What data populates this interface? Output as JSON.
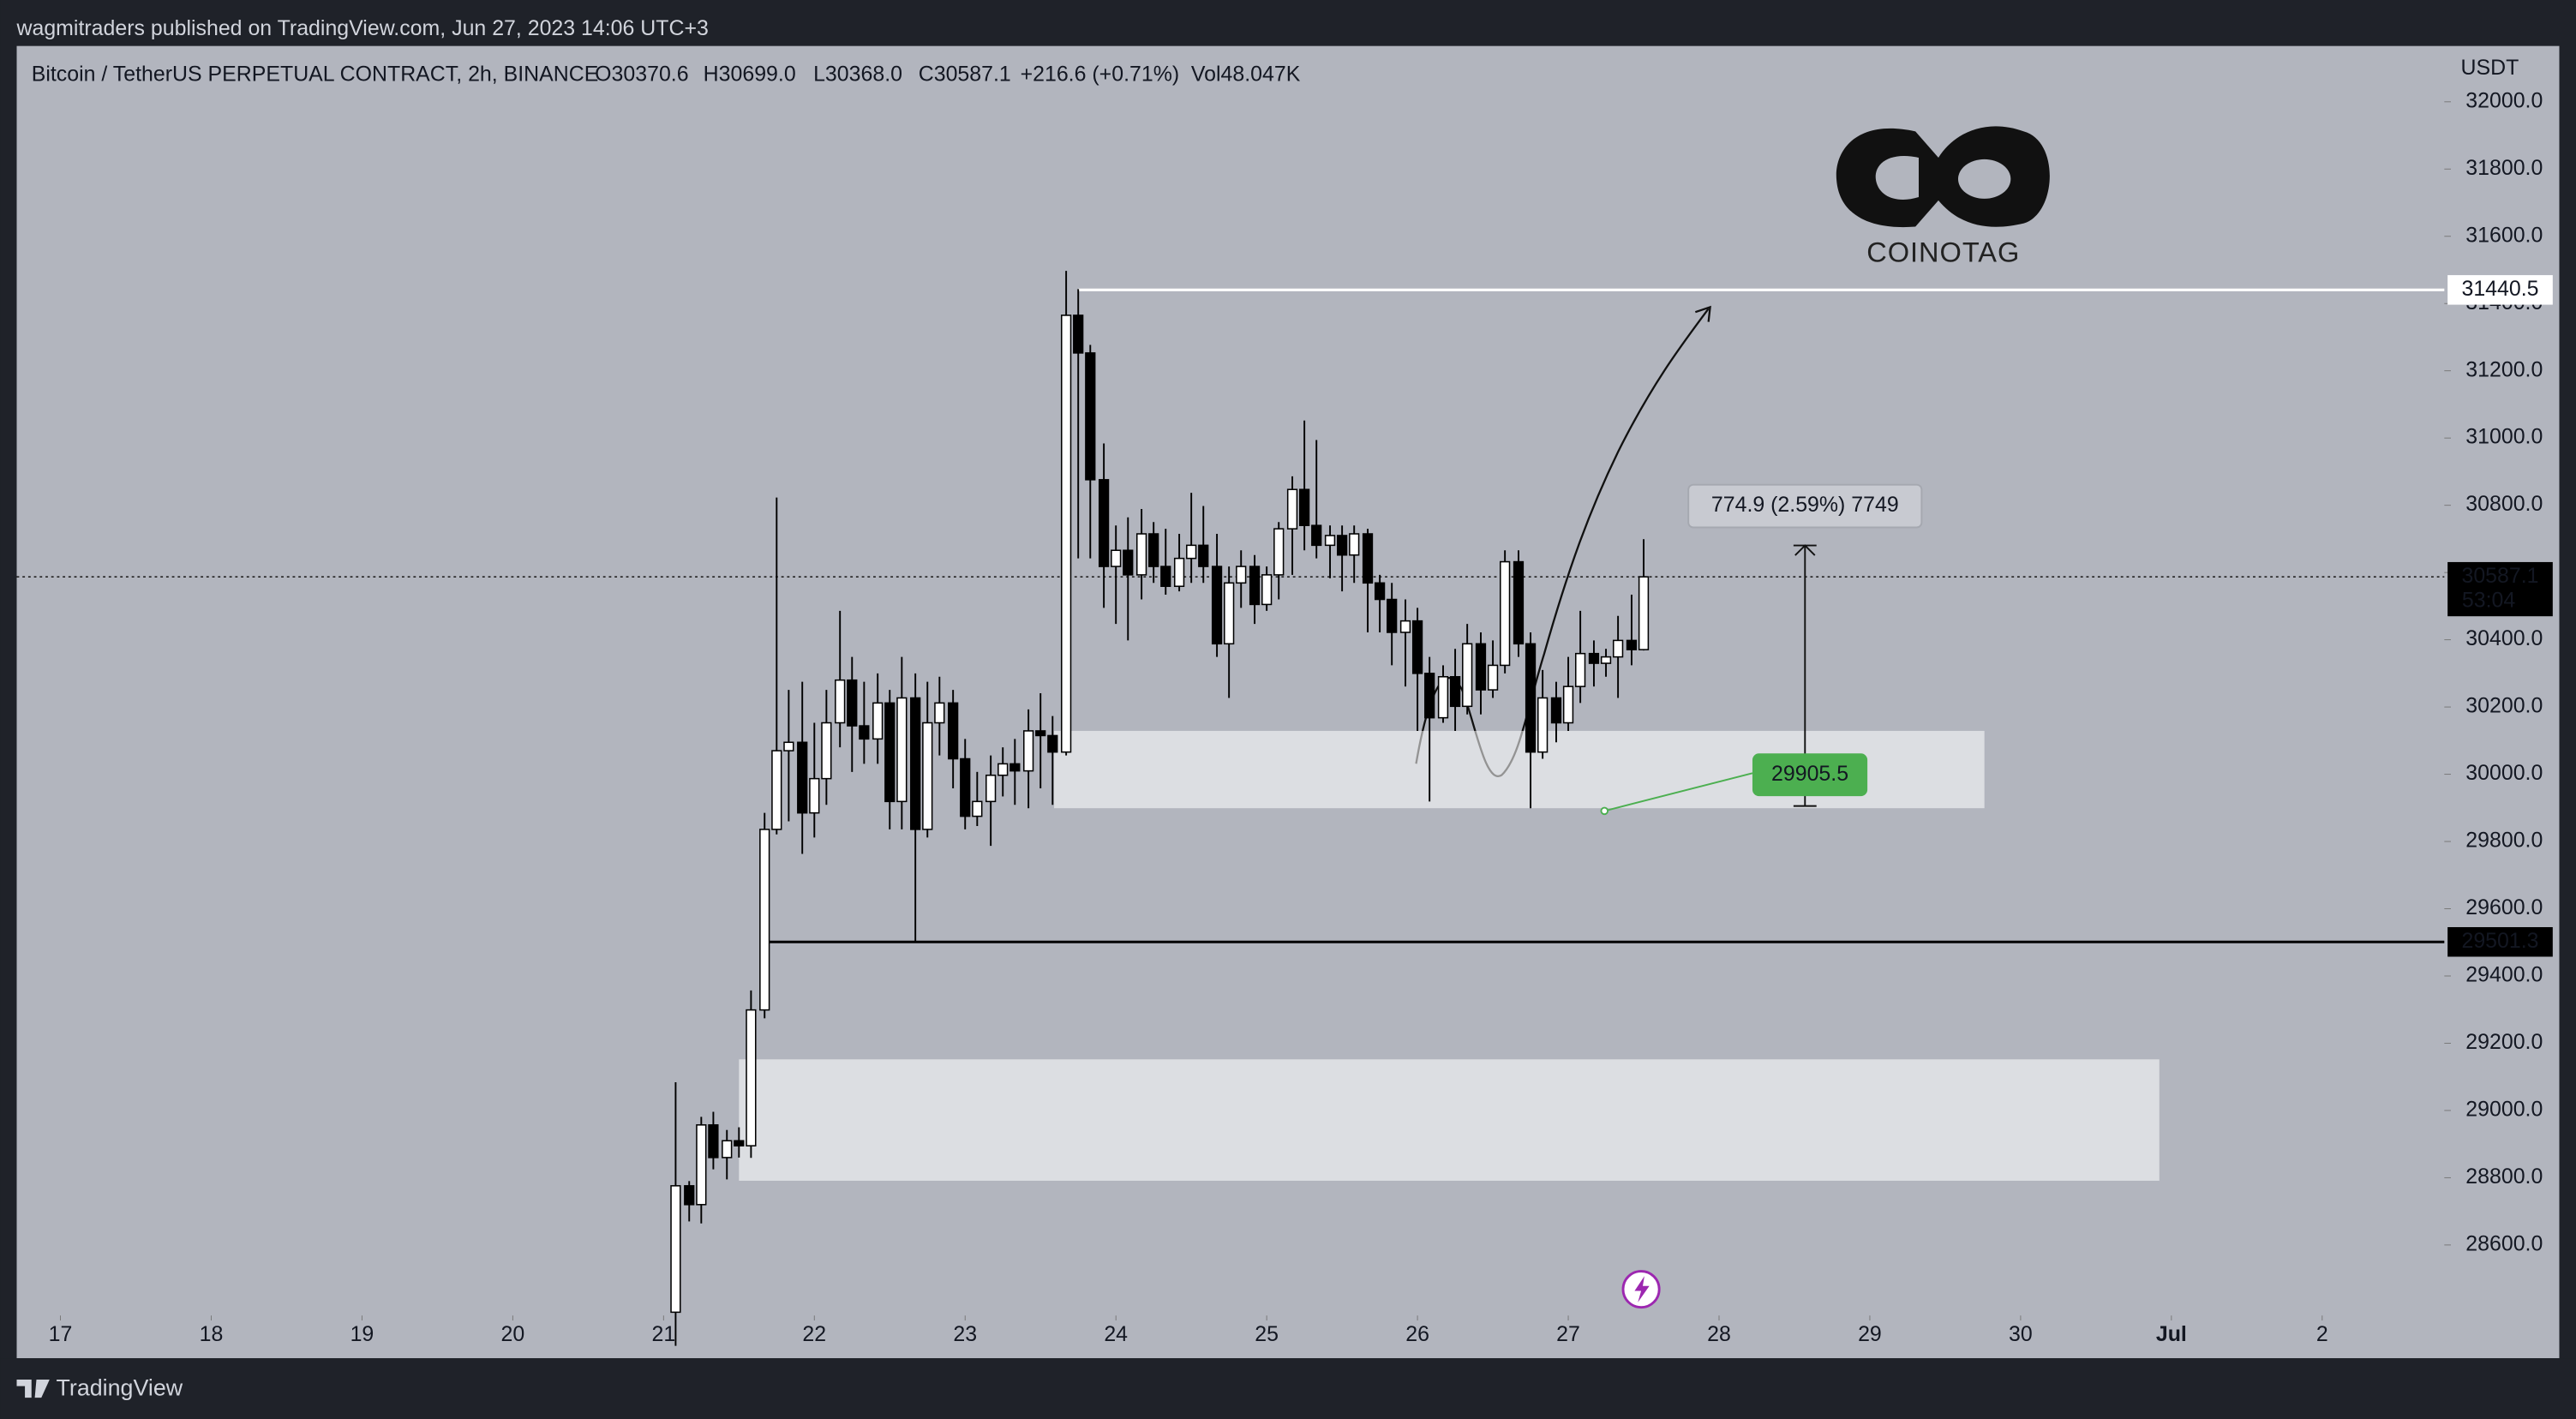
{
  "header": {
    "published": "wagmitraders published on TradingView.com, Jun 27, 2023 14:06 UTC+3"
  },
  "chart_data": {
    "type": "candlestick",
    "title": "Bitcoin / TetherUS PERPETUAL CONTRACT, 2h, BINANCE",
    "legend_values": [
      "O30370.6",
      "H30699.0",
      "L30368.0",
      "C30587.1",
      "+216.6 (+0.71%)",
      "Vol48.047K"
    ],
    "y_axis_label": "USDT",
    "x": [
      21.08,
      21.17,
      21.25,
      21.33,
      21.42,
      21.5,
      21.58,
      21.67,
      21.75,
      21.83,
      21.92,
      22,
      22.08,
      22.17,
      22.25,
      22.33,
      22.42,
      22.5,
      22.58,
      22.67,
      22.75,
      22.83,
      22.92,
      23,
      23.08,
      23.17,
      23.25,
      23.33,
      23.42,
      23.5,
      23.58,
      23.67,
      23.75,
      23.83,
      23.92,
      24,
      24.08,
      24.17,
      24.25,
      24.33,
      24.42,
      24.5,
      24.58,
      24.67,
      24.75,
      24.83,
      24.92,
      25,
      25.08,
      25.17,
      25.25,
      25.33,
      25.42,
      25.5,
      25.58,
      25.67,
      25.75,
      25.83,
      25.92,
      26,
      26.08,
      26.17,
      26.25,
      26.33,
      26.42,
      26.5,
      26.58,
      26.67,
      26.75,
      26.83,
      26.92,
      27,
      27.08,
      27.17,
      27.25,
      27.33,
      27.42,
      27.5
    ],
    "open": [
      28400,
      28776,
      28720,
      28957,
      28860,
      28910,
      28895,
      29299,
      29836,
      30070,
      30095,
      29885,
      29987,
      30153,
      30280,
      30144,
      30105,
      30212,
      29919,
      30227,
      29836,
      30153,
      30212,
      30046,
      29875,
      29919,
      29997,
      30031,
      30010,
      30129,
      30115,
      30066,
      31365,
      31253,
      30876,
      30618,
      30666,
      30593,
      30715,
      30618,
      30559,
      30642,
      30681,
      30618,
      30388,
      30569,
      30618,
      30505,
      30593,
      30730,
      30847,
      30740,
      30681,
      30710,
      30652,
      30715,
      30569,
      30520,
      30422,
      30456,
      30300,
      30168,
      30290,
      30202,
      30388,
      30251,
      30324,
      30632,
      30388,
      30066,
      30227,
      30153,
      30261,
      30359,
      30330,
      30349,
      30398,
      30370.6
    ],
    "high": [
      29084,
      28790,
      28981,
      28996,
      28942,
      28950,
      29357,
      29885,
      30823,
      30251,
      30275,
      30153,
      30251,
      30486,
      30349,
      30275,
      30300,
      30251,
      30349,
      30300,
      30275,
      30290,
      30251,
      30105,
      30007,
      30056,
      30080,
      30105,
      30193,
      30241,
      30173,
      31497,
      31443,
      31277,
      30984,
      30740,
      30764,
      30789,
      30750,
      30730,
      30715,
      30837,
      30798,
      30715,
      30618,
      30666,
      30652,
      30618,
      30750,
      30886,
      31052,
      30994,
      30740,
      30740,
      30740,
      30730,
      30593,
      30569,
      30520,
      30495,
      30349,
      30324,
      30373,
      30447,
      30422,
      30398,
      30666,
      30666,
      30422,
      30310,
      30275,
      30349,
      30486,
      30398,
      30373,
      30471,
      30534,
      30699.0
    ],
    "low": [
      28300,
      28670,
      28664,
      28825,
      28795,
      28860,
      28859,
      29274,
      29821,
      29860,
      29763,
      29812,
      29909,
      30080,
      30007,
      30031,
      30031,
      29836,
      29836,
      29501,
      29812,
      30056,
      29958,
      29836,
      29846,
      29787,
      29934,
      29909,
      29899,
      29958,
      29909,
      30056,
      30642,
      30642,
      30495,
      30447,
      30398,
      30520,
      30569,
      30534,
      30544,
      30569,
      30569,
      30349,
      30227,
      30495,
      30447,
      30486,
      30520,
      30593,
      30666,
      30642,
      30583,
      30544,
      30569,
      30422,
      30422,
      30324,
      30261,
      30129,
      29919,
      30153,
      30129,
      30178,
      30178,
      30227,
      30300,
      30349,
      29899,
      30046,
      30095,
      30129,
      30212,
      30261,
      30290,
      30227,
      30324,
      30368.0
    ],
    "close": [
      28776,
      28720,
      28957,
      28860,
      28910,
      28895,
      29299,
      29836,
      30070,
      30095,
      29885,
      29987,
      30153,
      30280,
      30144,
      30105,
      30212,
      29919,
      30227,
      29836,
      30153,
      30212,
      30046,
      29875,
      29919,
      29997,
      30031,
      30010,
      30129,
      30115,
      30066,
      31365,
      31253,
      30876,
      30618,
      30666,
      30593,
      30715,
      30618,
      30559,
      30642,
      30681,
      30618,
      30388,
      30569,
      30618,
      30505,
      30593,
      30730,
      30847,
      30740,
      30681,
      30710,
      30652,
      30715,
      30569,
      30520,
      30422,
      30456,
      30300,
      30168,
      30290,
      30202,
      30388,
      30251,
      30324,
      30632,
      30388,
      30066,
      30227,
      30153,
      30261,
      30359,
      30330,
      30349,
      30398,
      30370.6,
      30587.1
    ],
    "up_color": "#ffffff",
    "down_color": "#000000",
    "xlim": [
      16.71,
      32.81
    ],
    "xticks": [
      17,
      18,
      19,
      20,
      21,
      22,
      23,
      24,
      25,
      26,
      27,
      28,
      29,
      30,
      {
        "value": 31,
        "label": "Jul"
      },
      {
        "value": 32,
        "label": "2"
      }
    ],
    "ylim": [
      28395,
      32166
    ],
    "yticks": [
      {
        "value": 28600,
        "label": "28600.0"
      },
      {
        "value": 28800,
        "label": "28800.0"
      },
      {
        "value": 29000,
        "label": "29000.0"
      },
      {
        "value": 29200,
        "label": "29200.0"
      },
      {
        "value": 29400,
        "label": "29400.0"
      },
      {
        "value": 29600,
        "label": "29600.0"
      },
      {
        "value": 29800,
        "label": "29800.0"
      },
      {
        "value": 30000,
        "label": "30000.0"
      },
      {
        "value": 30200,
        "label": "30200.0"
      },
      {
        "value": 30400,
        "label": "30400.0"
      },
      {
        "value": 30600,
        "label": "30600.0"
      },
      {
        "value": 30800,
        "label": "30800.0"
      },
      {
        "value": 31000,
        "label": "31000.0"
      },
      {
        "value": 31200,
        "label": "31200.0"
      },
      {
        "value": 31400,
        "label": "31400.0"
      },
      {
        "value": 31600,
        "label": "31600.0"
      },
      {
        "value": 31800,
        "label": "31800.0"
      },
      {
        "value": 32000,
        "label": "32000.0"
      }
    ],
    "grid": false,
    "zones": [
      {
        "x": [
          23.59,
          29.76
        ],
        "y": [
          29899,
          30129
        ]
      },
      {
        "x": [
          21.5,
          30.92
        ],
        "y": [
          28791,
          29152
        ]
      }
    ],
    "levels": [
      {
        "value": 31440.5,
        "x_start": 23.75,
        "color": "#ffffff"
      },
      {
        "value": 29501.3,
        "x_start": 21.7,
        "color": "#000000"
      }
    ],
    "last_price": {
      "value": 30587.1,
      "countdown": "53:04"
    },
    "measure": {
      "x": 28.57,
      "from": 29905.5,
      "to": 30680.4,
      "label": "774.9 (2.59%) 7749",
      "start_x": 27.24,
      "color": "#4caf50"
    },
    "watermark": "COINOTAG"
  },
  "footer": {
    "brand": "TradingView"
  }
}
